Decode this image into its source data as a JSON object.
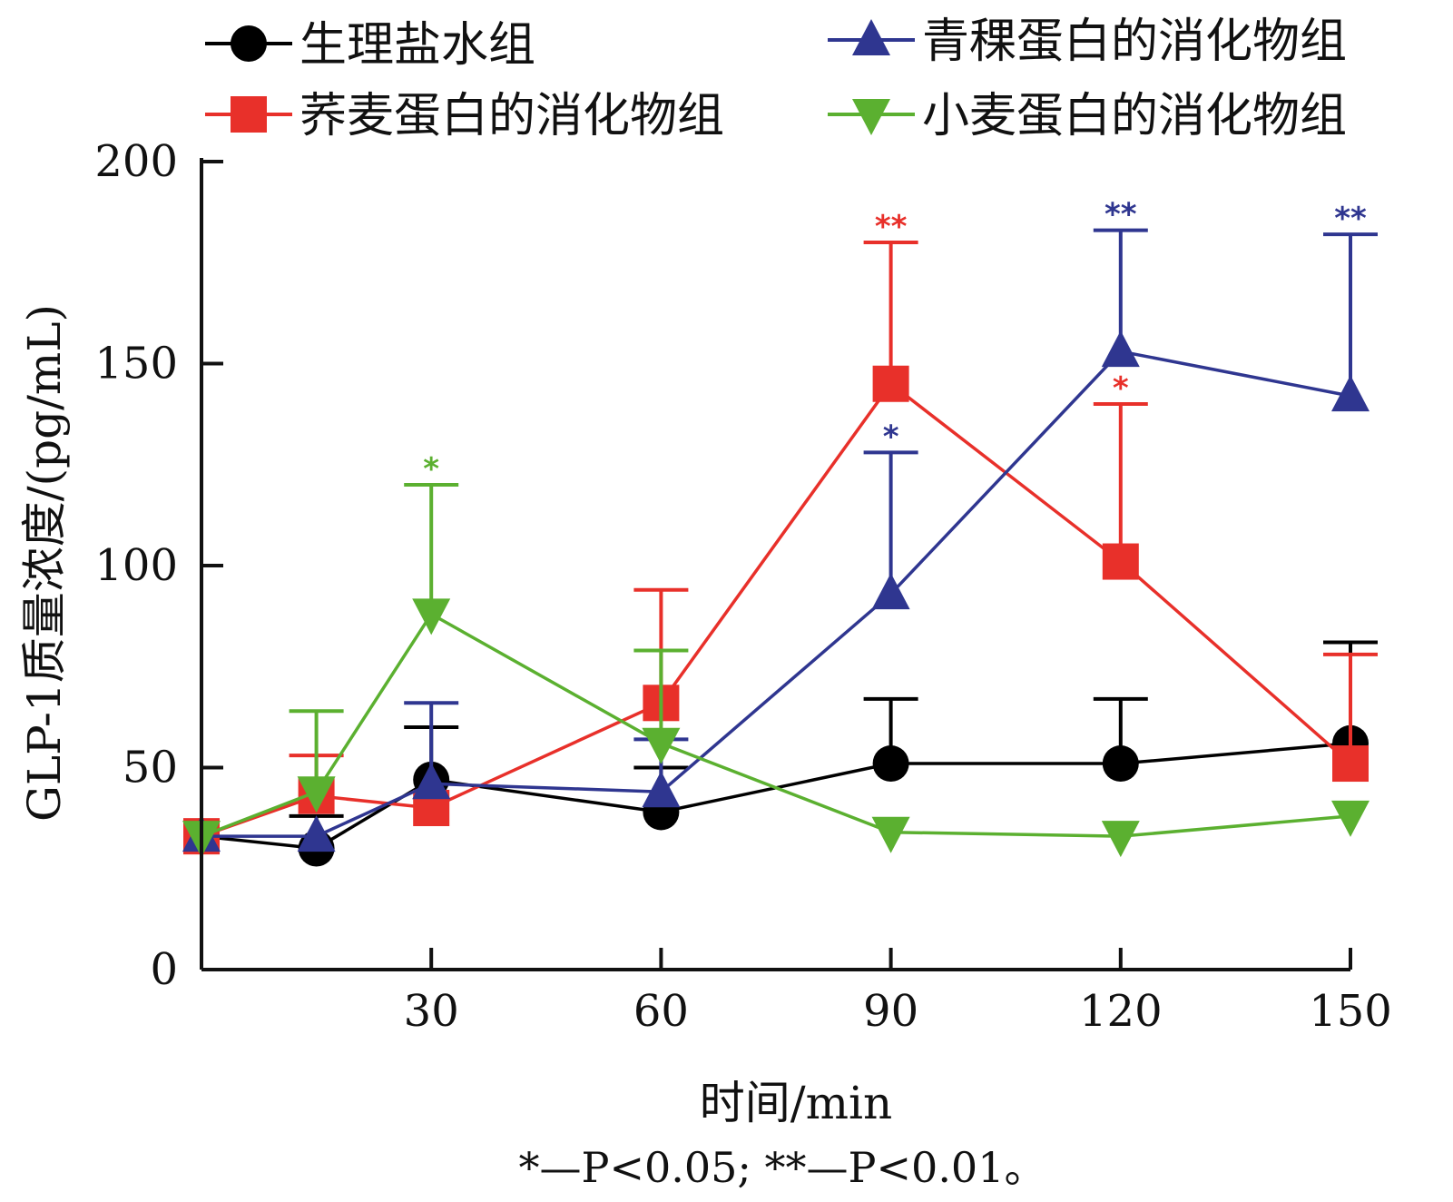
{
  "chart_data": {
    "type": "line",
    "title": "",
    "xlabel": "时间/min",
    "ylabel": "GLP-1质量浓度/(pg/mL)",
    "xlim": [
      0,
      150
    ],
    "ylim": [
      0,
      200
    ],
    "xticks": [
      30,
      60,
      90,
      120,
      150
    ],
    "yticks": [
      0,
      50,
      100,
      150,
      200
    ],
    "legend_position": "top",
    "x": [
      0,
      15,
      30,
      60,
      90,
      120,
      150
    ],
    "series": [
      {
        "name": "生理盐水组",
        "color": "#000000",
        "marker": "circle",
        "values": [
          33,
          30,
          47,
          39,
          51,
          51,
          56
        ],
        "error": [
          0,
          8,
          13,
          11,
          16,
          16,
          25
        ],
        "significance": [
          "",
          "",
          "",
          "",
          "",
          "",
          ""
        ]
      },
      {
        "name": "荞麦蛋白的消化物组",
        "color": "#e8302a",
        "marker": "square",
        "values": [
          33,
          43,
          40,
          66,
          145,
          101,
          51
        ],
        "error": [
          0,
          10,
          0,
          28,
          35,
          39,
          27
        ],
        "significance": [
          "",
          "",
          "",
          "",
          "**",
          "*",
          ""
        ]
      },
      {
        "name": "青稞蛋白的消化物组",
        "color": "#2f3690",
        "marker": "triangle-up",
        "values": [
          33,
          33,
          46,
          44,
          93,
          153,
          142
        ],
        "error": [
          0,
          0,
          20,
          13,
          35,
          30,
          40
        ],
        "significance": [
          "",
          "",
          "",
          "",
          "*",
          "**",
          "**"
        ]
      },
      {
        "name": "小麦蛋白的消化物组",
        "color": "#5bb030",
        "marker": "triangle-down",
        "values": [
          33,
          44,
          88,
          56,
          34,
          33,
          38
        ],
        "error": [
          0,
          20,
          32,
          23,
          0,
          0,
          0
        ],
        "significance": [
          "",
          "",
          "*",
          "",
          "",
          "",
          ""
        ]
      }
    ]
  },
  "footnote": "*—P<0.05; **—P<0.01。"
}
